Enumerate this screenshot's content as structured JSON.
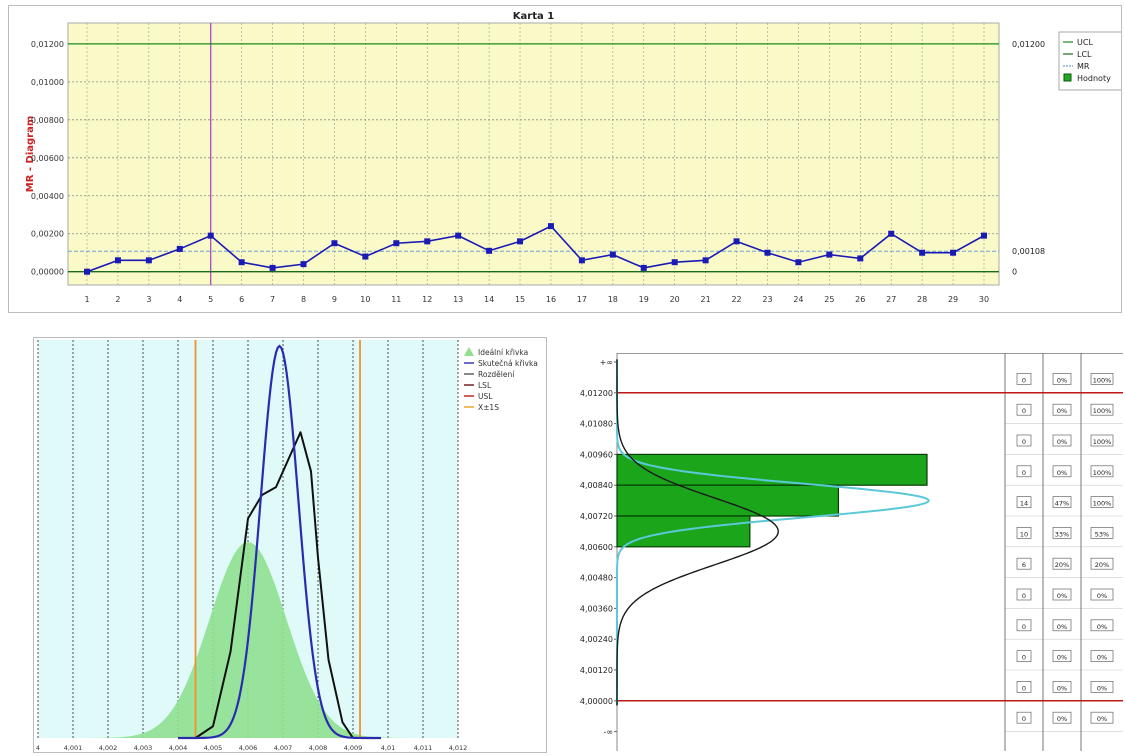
{
  "chart_data": [
    {
      "type": "line",
      "title": "Karta 1",
      "ylabel": "MR - Diagram",
      "xlabel": "",
      "x": [
        1,
        2,
        3,
        4,
        5,
        6,
        7,
        8,
        9,
        10,
        11,
        12,
        13,
        14,
        15,
        16,
        17,
        18,
        19,
        20,
        21,
        22,
        23,
        24,
        25,
        26,
        27,
        28,
        29,
        30
      ],
      "y_ticks": [
        "0,00000",
        "0,00200",
        "0,00400",
        "0,00600",
        "0,00800",
        "0,01000",
        "0,01200"
      ],
      "ylim": [
        -0.0007,
        0.0131
      ],
      "series": [
        {
          "name": "Hodnoty",
          "color": "#1a1ab4",
          "values": [
            0.0,
            0.0006,
            0.0006,
            0.0012,
            0.0019,
            0.0005,
            0.0002,
            0.0004,
            0.0015,
            0.0008,
            0.0015,
            0.0016,
            0.0019,
            0.0011,
            0.0016,
            0.0024,
            0.0006,
            0.0009,
            0.0002,
            0.0005,
            0.0006,
            0.0016,
            0.001,
            0.0005,
            0.0009,
            0.0007,
            0.002,
            0.001,
            0.001,
            0.0019
          ]
        }
      ],
      "lines": {
        "ucl": {
          "name": "UCL",
          "value": 0.012,
          "label": "0,01200",
          "color": "#1b8a1b"
        },
        "lcl": {
          "name": "LCL",
          "value": 0.0,
          "label": "0",
          "color": "#1b6a1b"
        },
        "mr": {
          "name": "MR",
          "value": 0.00108,
          "label": "0,00108",
          "color": "#6fa3d3"
        }
      },
      "legend": [
        {
          "name": "UCL",
          "color": "#1b8a1b",
          "style": "line"
        },
        {
          "name": "LCL",
          "color": "#1b6a1b",
          "style": "line"
        },
        {
          "name": "MR",
          "color": "#6fa3d3",
          "style": "dashed"
        },
        {
          "name": "Hodnoty",
          "color": "#22a822",
          "style": "box"
        }
      ],
      "legend_position": "right",
      "marker_x": 5,
      "marker_color": "#a040c0",
      "background": "#fafac8",
      "grid": true
    },
    {
      "type": "area",
      "x_ticks": [
        "4",
        "4,001",
        "4,002",
        "4,003",
        "4,004",
        "4,005",
        "4,006",
        "4,007",
        "4,008",
        "4,009",
        "4,01",
        "4,011",
        "4,012"
      ],
      "xlim": [
        4.0,
        4.012
      ],
      "background": "#e0fafa",
      "legend": [
        {
          "name": "Ideální křivka",
          "color": "#90e090",
          "style": "triangle"
        },
        {
          "name": "Skutečná křivka",
          "color": "#2b2bb0",
          "style": "line"
        },
        {
          "name": "Rozdělení",
          "color": "#555555",
          "style": "line"
        },
        {
          "name": "LSL",
          "color": "#6a1010",
          "style": "line"
        },
        {
          "name": "USL",
          "color": "#c01818",
          "style": "line"
        },
        {
          "name": "X±1S",
          "color": "#f0a020",
          "style": "line"
        }
      ],
      "legend_position": "top-right",
      "vlines": {
        "sigma_lo": 4.0045,
        "sigma_hi": 4.0092,
        "color": "#f09030"
      },
      "ideal": {
        "mean": 4.006,
        "sd": 0.0011,
        "peak": 0.5,
        "color": "#90e090"
      },
      "actual": {
        "mean": 4.0069,
        "sd": 0.00054,
        "peak": 1.0,
        "color": "#2b2bb0"
      },
      "distribution": [
        [
          4.0045,
          0
        ],
        [
          4.005,
          0.03
        ],
        [
          4.0055,
          0.22
        ],
        [
          4.006,
          0.56
        ],
        [
          4.0064,
          0.62
        ],
        [
          4.0068,
          0.64
        ],
        [
          4.0072,
          0.72
        ],
        [
          4.0075,
          0.78
        ],
        [
          4.0078,
          0.68
        ],
        [
          4.008,
          0.46
        ],
        [
          4.0083,
          0.2
        ],
        [
          4.0087,
          0.04
        ],
        [
          4.009,
          0
        ]
      ]
    },
    {
      "type": "bar",
      "orientation": "horizontal",
      "y_ticks": [
        "+∞",
        "4,01200",
        "4,01080",
        "4,00960",
        "4,00840",
        "4,00720",
        "4,00600",
        "4,00480",
        "4,00360",
        "4,00240",
        "4,00120",
        "4,00000",
        "-∞"
      ],
      "lsl": 4.0,
      "usl": 4.012,
      "limit_color": "#c01818",
      "bins": [
        {
          "count": 0,
          "pct": "0%",
          "cum": "100%"
        },
        {
          "count": 0,
          "pct": "0%",
          "cum": "100%"
        },
        {
          "count": 0,
          "pct": "0%",
          "cum": "100%"
        },
        {
          "count": 0,
          "pct": "0%",
          "cum": "100%"
        },
        {
          "count": 14,
          "pct": "47%",
          "cum": "100%"
        },
        {
          "count": 10,
          "pct": "33%",
          "cum": "53%"
        },
        {
          "count": 6,
          "pct": "20%",
          "cum": "20%"
        },
        {
          "count": 0,
          "pct": "0%",
          "cum": "0%"
        },
        {
          "count": 0,
          "pct": "0%",
          "cum": "0%"
        },
        {
          "count": 0,
          "pct": "0%",
          "cum": "0%"
        },
        {
          "count": 0,
          "pct": "0%",
          "cum": "0%"
        },
        {
          "count": 0,
          "pct": "0%",
          "cum": "0%"
        }
      ],
      "bars": [
        {
          "lo": 4.0084,
          "hi": 4.0096,
          "count": 14
        },
        {
          "lo": 4.0072,
          "hi": 4.0084,
          "count": 10
        },
        {
          "lo": 4.006,
          "hi": 4.0072,
          "count": 6
        }
      ],
      "bar_color": "#1aa51a",
      "dark_curve": {
        "mean": 4.0066,
        "sd": 0.0013,
        "peak": 0.75,
        "color": "#1a1a1a"
      },
      "light_curve": {
        "mean": 4.0078,
        "sd": 0.00065,
        "peak": 1.45,
        "color": "#5cc8d8"
      }
    }
  ]
}
